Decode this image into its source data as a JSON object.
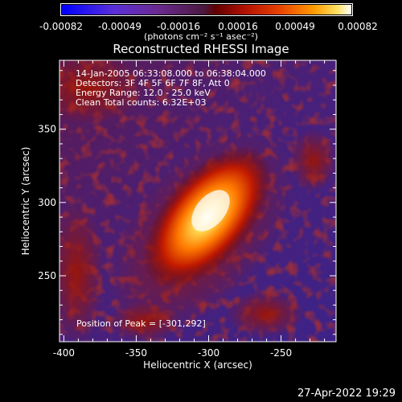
{
  "colorbar": {
    "tick_labels": [
      "-0.00082",
      "-0.00049",
      "-0.00016",
      "0.00016",
      "0.00049",
      "0.00082"
    ],
    "unit_label": "(photons cm⁻² s⁻¹ asec⁻²)"
  },
  "title": "Reconstructed RHESSI Image",
  "info": {
    "line1": "14-Jan-2005 06:33:08.000 to 06:38:04.000",
    "line2": "Detectors: 3F 4F 5F 6F 7F 8F, Att 0",
    "line3": "Energy Range: 12.0 - 25.0 keV",
    "line4": "Clean    Total counts: 6.32E+03"
  },
  "peak_label": "Position of Peak = [-301,292]",
  "timestamp": "27-Apr-2022 19:29",
  "colors": {
    "low": "#0000ff",
    "mid": "#4a1840",
    "high": "#ffffff"
  },
  "chart_data": {
    "type": "heatmap",
    "title": "Reconstructed RHESSI Image",
    "xlabel": "Heliocentric X (arcsec)",
    "ylabel": "Heliocentric Y (arcsec)",
    "xlim": [
      -403,
      -212
    ],
    "ylim": [
      205,
      397
    ],
    "xticks": [
      -400,
      -350,
      -300,
      -250
    ],
    "yticks": [
      250,
      300,
      350
    ],
    "xtick_labels": [
      "-400",
      "-350",
      "-300",
      "-250"
    ],
    "ytick_labels": [
      "250",
      "300",
      "350"
    ],
    "zlim": [
      -0.00082,
      0.00082
    ],
    "peak": [
      -301,
      292
    ]
  }
}
